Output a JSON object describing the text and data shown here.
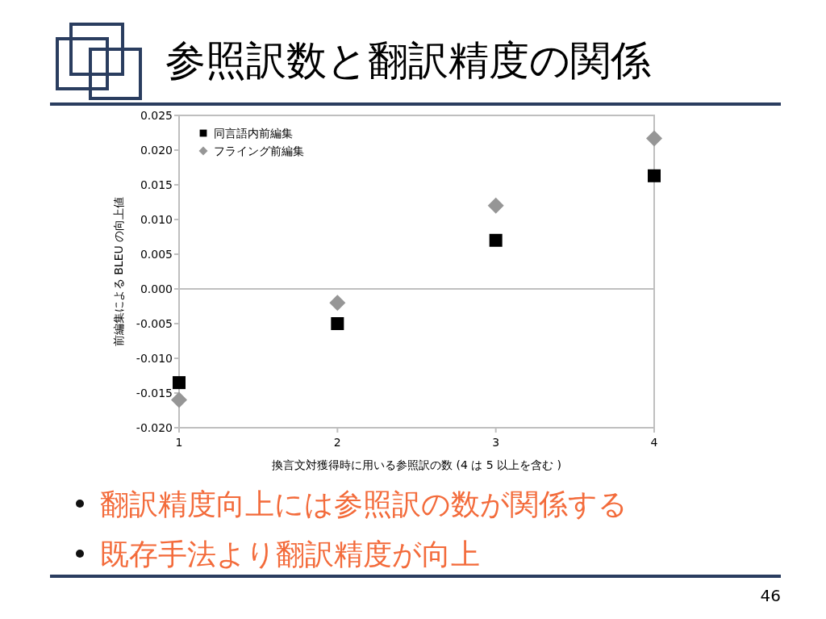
{
  "chart_data": {
    "type": "scatter",
    "title": "参照訳数と翻訳精度の関係",
    "xlabel": "換言文対獲得時に用いる参照訳の数 (4 は 5 以上を含む )",
    "ylabel": "前編集による BLEU の向上値",
    "x": [
      1,
      2,
      3,
      4
    ],
    "xlim": [
      1,
      4
    ],
    "xticks": [
      1,
      2,
      3,
      4
    ],
    "ylim": [
      -0.02,
      0.025
    ],
    "yticks": [
      {
        "value": -0.02,
        "label": "-0.020"
      },
      -0.015,
      {
        "value": -0.01,
        "label": "-0.010"
      },
      -0.005,
      {
        "value": 0,
        "label": "0.000"
      },
      0.005,
      {
        "value": 0.01,
        "label": "0.010"
      },
      0.015,
      {
        "value": 0.02,
        "label": "0.020"
      },
      0.025
    ],
    "series": [
      {
        "name": "同言語内前編集",
        "color": "#000000",
        "marker": "square",
        "values": [
          -0.0135,
          -0.005,
          0.007,
          0.0163
        ]
      },
      {
        "name": "フライング前編集",
        "color": "#969696",
        "marker": "diamond",
        "values": [
          -0.016,
          -0.002,
          0.012,
          0.0217
        ]
      }
    ],
    "ref_lines": [
      {
        "axis": "y",
        "value": 0,
        "color": "#bfbfbf"
      }
    ],
    "legend": "top left",
    "annotations": [
      "翻訳精度向上には参照訳の数が関係する",
      "既存手法より翻訳精度が向上",
      "46"
    ]
  }
}
